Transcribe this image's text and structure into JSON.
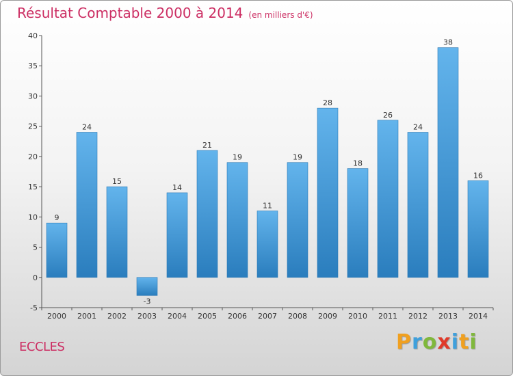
{
  "title": "Résultat Comptable 2000 à 2014",
  "subtitle": "(en milliers d'€)",
  "commune": "ECCLES",
  "brand": {
    "letters": [
      "P",
      "r",
      "o",
      "x",
      "i",
      "t",
      "i"
    ],
    "colors": [
      "#f0a020",
      "#3fa0dc",
      "#80b83c",
      "#e03a2a",
      "#3fa0dc",
      "#f0a020",
      "#80b83c"
    ]
  },
  "colors": {
    "bar_light": "#63b4ec",
    "bar_dark": "#2a7dbd",
    "axis": "#555555",
    "accent": "#cc2e63"
  },
  "chart_data": {
    "type": "bar",
    "title": "Résultat Comptable 2000 à 2014",
    "xlabel": "",
    "ylabel": "en milliers d'€",
    "categories": [
      "2000",
      "2001",
      "2002",
      "2003",
      "2004",
      "2005",
      "2006",
      "2007",
      "2008",
      "2009",
      "2010",
      "2011",
      "2012",
      "2013",
      "2014"
    ],
    "values": [
      9,
      24,
      15,
      -3,
      14,
      21,
      19,
      11,
      19,
      28,
      18,
      26,
      24,
      38,
      16
    ],
    "ylim": [
      -5,
      40
    ],
    "yticks": [
      -5,
      0,
      5,
      10,
      15,
      20,
      25,
      30,
      35,
      40
    ],
    "grid": false
  }
}
